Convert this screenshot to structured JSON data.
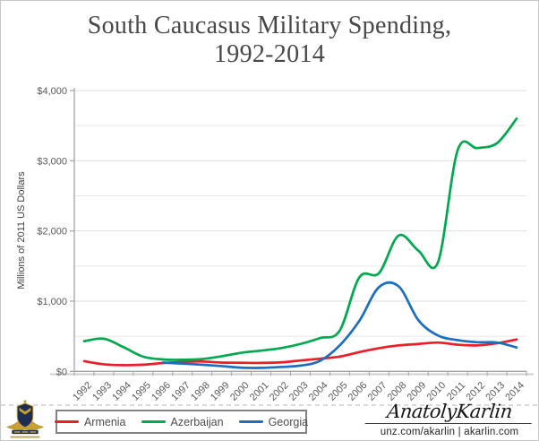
{
  "title": {
    "line1": "South Caucasus Military Spending,",
    "line2": "1992-2014"
  },
  "y_axis": {
    "title": "Millions of 2011 US Dollars",
    "ticks": [
      {
        "value": 0,
        "label": "$0"
      },
      {
        "value": 1000,
        "label": "$1,000"
      },
      {
        "value": 2000,
        "label": "$2,000"
      },
      {
        "value": 3000,
        "label": "$3,000"
      },
      {
        "value": 4000,
        "label": "$4,000"
      }
    ]
  },
  "x_axis": {
    "ticks": [
      "1992",
      "1993",
      "1994",
      "1995",
      "1996",
      "1997",
      "1998",
      "1999",
      "2000",
      "2001",
      "2002",
      "2003",
      "2004",
      "2005",
      "2006",
      "2007",
      "2008",
      "2009",
      "2010",
      "2011",
      "2012",
      "2013",
      "2014"
    ]
  },
  "legend": {
    "items": [
      {
        "label": "Armenia",
        "color": "#ec1d24"
      },
      {
        "label": "Azerbaijan",
        "color": "#00a94f"
      },
      {
        "label": "Georgia",
        "color": "#1b6fc2"
      }
    ]
  },
  "watermark": {
    "signature": "AnatolyKarlin",
    "links": "unz.com/akarlin | akarlin.com",
    "logo_icon": "winged-shield-emblem"
  },
  "chart_data": {
    "type": "line",
    "title": "South Caucasus Military Spending, 1992-2014",
    "xlabel": "",
    "ylabel": "Millions of 2011 US Dollars",
    "ylim": [
      0,
      4000
    ],
    "grid_step": 500,
    "label_step": 1000,
    "grid": true,
    "smooth": true,
    "legend_position": "bottom",
    "x": [
      1992,
      1993,
      1994,
      1995,
      1996,
      1997,
      1998,
      1999,
      2000,
      2001,
      2002,
      2003,
      2004,
      2005,
      2006,
      2007,
      2008,
      2009,
      2010,
      2011,
      2012,
      2013,
      2014
    ],
    "series": [
      {
        "name": "Armenia",
        "color": "#ec1d24",
        "values": [
          145,
          100,
          88,
          95,
          118,
          135,
          140,
          125,
          122,
          120,
          128,
          155,
          180,
          210,
          275,
          330,
          370,
          390,
          410,
          380,
          370,
          400,
          455
        ]
      },
      {
        "name": "Azerbaijan",
        "color": "#00a94f",
        "values": [
          430,
          465,
          345,
          210,
          170,
          165,
          175,
          215,
          265,
          295,
          330,
          390,
          475,
          580,
          1340,
          1400,
          1935,
          1720,
          1555,
          3150,
          3180,
          3250,
          3600
        ]
      },
      {
        "name": "Georgia",
        "color": "#1b6fc2",
        "values": [
          null,
          null,
          null,
          null,
          125,
          110,
          95,
          75,
          52,
          50,
          62,
          82,
          150,
          370,
          720,
          1200,
          1210,
          730,
          510,
          445,
          415,
          410,
          340
        ]
      }
    ]
  }
}
